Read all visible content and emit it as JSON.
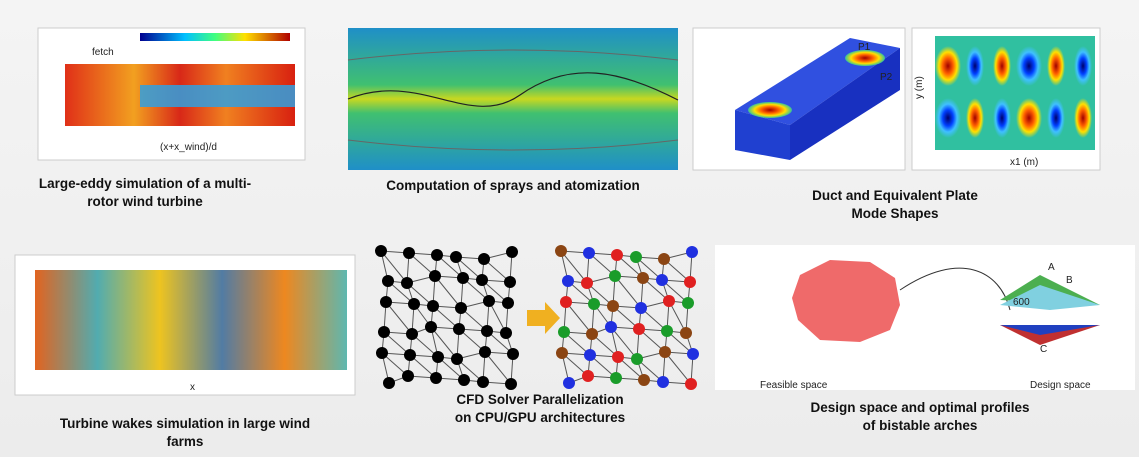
{
  "figures": [
    {
      "caption": [
        "Large-eddy simulation of a multi-",
        "rotor wind turbine"
      ],
      "labels": [
        "fetch",
        "(x+x_wind)/d"
      ]
    },
    {
      "caption": [
        "Computation of  sprays and atomization"
      ],
      "labels": []
    },
    {
      "caption": [
        "Duct and Equivalent Plate",
        "Mode Shapes"
      ],
      "labels": [
        "P1",
        "P2",
        "x1 (m)",
        "y (m)"
      ]
    },
    {
      "caption": [
        "Turbine wakes simulation in large wind",
        "farms"
      ],
      "labels": [
        "x"
      ]
    },
    {
      "caption": [
        "CFD Solver Parallelization",
        "on CPU/GPU architectures"
      ],
      "labels": []
    },
    {
      "caption": [
        "Design space and optimal profiles",
        "of bistable arches"
      ],
      "labels": [
        "Feasible space",
        "Design space",
        "A",
        "B",
        "C",
        "600"
      ]
    }
  ]
}
